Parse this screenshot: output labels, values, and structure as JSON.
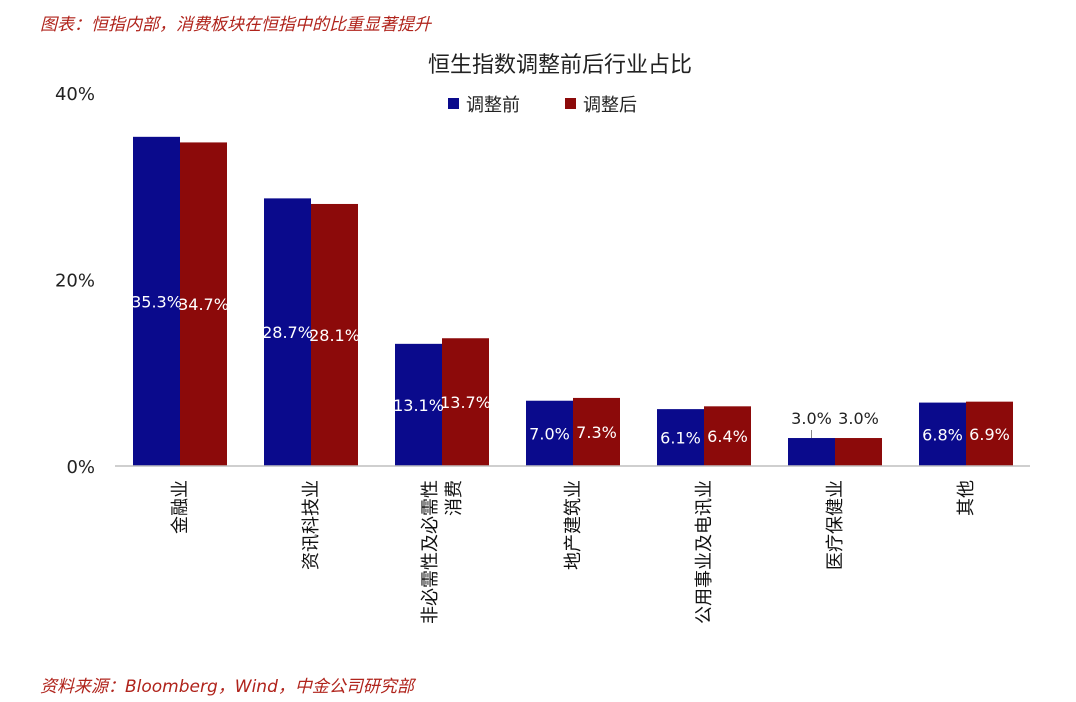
{
  "caption": "图表：恒指内部，消费板块在恒指中的比重显著提升",
  "source": "资料来源：Bloomberg，Wind，中金公司研究部",
  "colors": {
    "before": "#0a0a8c",
    "after": "#8c0a0a",
    "axis": "#bfbfbf",
    "caption": "#b0241c"
  },
  "chart_data": {
    "type": "bar",
    "title": "恒生指数调整前后行业占比",
    "xlabel": "",
    "ylabel": "",
    "ylim": [
      0,
      40
    ],
    "yticks": [
      "0%",
      "20%",
      "40%"
    ],
    "yticks_values": [
      0,
      20,
      40
    ],
    "legend_position": "top-center",
    "categories": [
      [
        "金融业"
      ],
      [
        "资讯科技业"
      ],
      [
        "非必需性及必需性",
        "消费"
      ],
      [
        "地产建筑业"
      ],
      [
        "公用事业及电讯业"
      ],
      [
        "医疗保健业"
      ],
      [
        "其他"
      ]
    ],
    "series": [
      {
        "name": "调整前",
        "values": [
          35.3,
          28.7,
          13.1,
          7.0,
          6.1,
          3.0,
          6.8
        ],
        "labels": [
          "35.3%",
          "28.7%",
          "13.1%",
          "7.0%",
          "6.1%",
          "3.0%",
          "6.8%"
        ]
      },
      {
        "name": "调整后",
        "values": [
          34.7,
          28.1,
          13.7,
          7.3,
          6.4,
          3.0,
          6.9
        ],
        "labels": [
          "34.7%",
          "28.1%",
          "13.7%",
          "7.3%",
          "6.4%",
          "3.0%",
          "6.9%"
        ]
      }
    ]
  }
}
